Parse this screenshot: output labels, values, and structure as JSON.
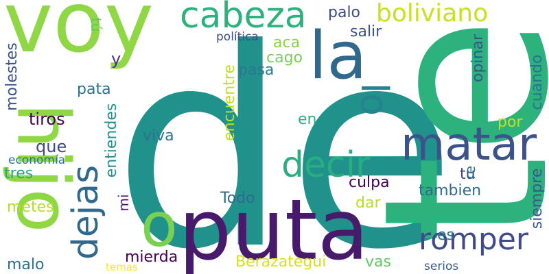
{
  "colors": {
    "background": "#ffffff",
    "teal": "#21918c",
    "green": "#2db27d",
    "lime": "#8fd744",
    "yellow": "#d8e219",
    "purple": "#440154",
    "indigo": "#3b528b",
    "blue": "#31688e"
  },
  "words": [
    {
      "text": "de",
      "color": "#21918c"
    },
    {
      "text": "te",
      "color": "#2db27d"
    },
    {
      "text": "puta",
      "color": "#481a6c"
    },
    {
      "text": "voy",
      "color": "#8fd744"
    },
    {
      "text": "hijo",
      "color": "#8fd744"
    },
    {
      "text": "la",
      "color": "#31688e"
    },
    {
      "text": "matar",
      "color": "#3b528b"
    },
    {
      "text": "romper",
      "color": "#3e4a89"
    },
    {
      "text": "cabeza",
      "color": "#2db27d"
    },
    {
      "text": "boliviano",
      "color": "#c8e020"
    },
    {
      "text": "decir",
      "color": "#28ae80"
    },
    {
      "text": "o",
      "color": "#7ad151"
    },
    {
      "text": "lo",
      "color": "#26828e"
    },
    {
      "text": "dejas",
      "color": "#31688e"
    },
    {
      "text": "palo",
      "color": "#3e4989"
    },
    {
      "text": "salir",
      "color": "#3b528b"
    },
    {
      "text": "política",
      "color": "#3e4a89"
    },
    {
      "text": "aca",
      "color": "#86d549"
    },
    {
      "text": "cago",
      "color": "#7ad151"
    },
    {
      "text": "pasa",
      "color": "#2a788e"
    },
    {
      "text": "tú",
      "color": "#5ec962"
    },
    {
      "text": "y",
      "color": "#46327e"
    },
    {
      "text": "molestes",
      "color": "#3b528b"
    },
    {
      "text": "pata",
      "color": "#2c728e"
    },
    {
      "text": "tiros",
      "color": "#440154"
    },
    {
      "text": "encuentre",
      "color": "#c2df23"
    },
    {
      "text": "entiendes",
      "color": "#21918c"
    },
    {
      "text": "en",
      "color": "#2db27d"
    },
    {
      "text": "por",
      "color": "#c2df23"
    },
    {
      "text": "viva",
      "color": "#2c728e"
    },
    {
      "text": "que",
      "color": "#3e4989"
    },
    {
      "text": "economía",
      "color": "#2c728e"
    },
    {
      "text": "tres",
      "color": "#22a884"
    },
    {
      "text": "opinar",
      "color": "#3b528b"
    },
    {
      "text": "cuando",
      "color": "#2c728e"
    },
    {
      "text": "tu",
      "color": "#433e85"
    },
    {
      "text": "re",
      "color": "#2c728e"
    },
    {
      "text": "culpa",
      "color": "#440154"
    },
    {
      "text": "tambien",
      "color": "#31688e"
    },
    {
      "text": "Todo",
      "color": "#31688e"
    },
    {
      "text": "dar",
      "color": "#b5de2b"
    },
    {
      "text": "metes",
      "color": "#b5de2b"
    },
    {
      "text": "mi",
      "color": "#481a6c"
    },
    {
      "text": "siempre",
      "color": "#38588c"
    },
    {
      "text": "es",
      "color": "#2c728e"
    },
    {
      "text": "mierda",
      "color": "#440154"
    },
    {
      "text": "Berazategui",
      "color": "#d8e219"
    },
    {
      "text": "vas",
      "color": "#5ec962"
    },
    {
      "text": "malo",
      "color": "#2c728e"
    },
    {
      "text": "temas",
      "color": "#fde725"
    },
    {
      "text": "serios",
      "color": "#38588c"
    }
  ]
}
